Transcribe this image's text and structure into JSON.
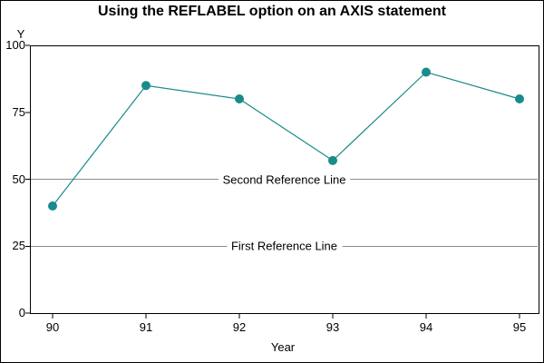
{
  "window": {
    "background": "#ffffff",
    "border_color": "#000000"
  },
  "chart_data": {
    "type": "line",
    "title": "Using the REFLABEL option on an AXIS statement",
    "xlabel": "Year",
    "ylabel": "Y",
    "x": [
      90,
      91,
      92,
      93,
      94,
      95
    ],
    "series": [
      {
        "name": "Y",
        "values": [
          40,
          85,
          80,
          57,
          90,
          80
        ],
        "color": "#1a8b8b",
        "marker": "filled-circle"
      }
    ],
    "xticks": [
      "90",
      "91",
      "92",
      "93",
      "94",
      "95"
    ],
    "yticks": [
      "0",
      "25",
      "50",
      "75",
      "100"
    ],
    "ytick_values": [
      0,
      25,
      50,
      75,
      100
    ],
    "xtick_values": [
      90,
      91,
      92,
      93,
      94,
      95
    ],
    "ylim": [
      0,
      100
    ],
    "xlim": [
      90,
      95
    ],
    "grid": false,
    "legend": "none",
    "axis_color": "#000000",
    "refline_color": "#8c8c8c",
    "reference_lines": [
      {
        "y": 25,
        "label": "First Reference Line"
      },
      {
        "y": 50,
        "label": "Second Reference Line"
      }
    ]
  }
}
